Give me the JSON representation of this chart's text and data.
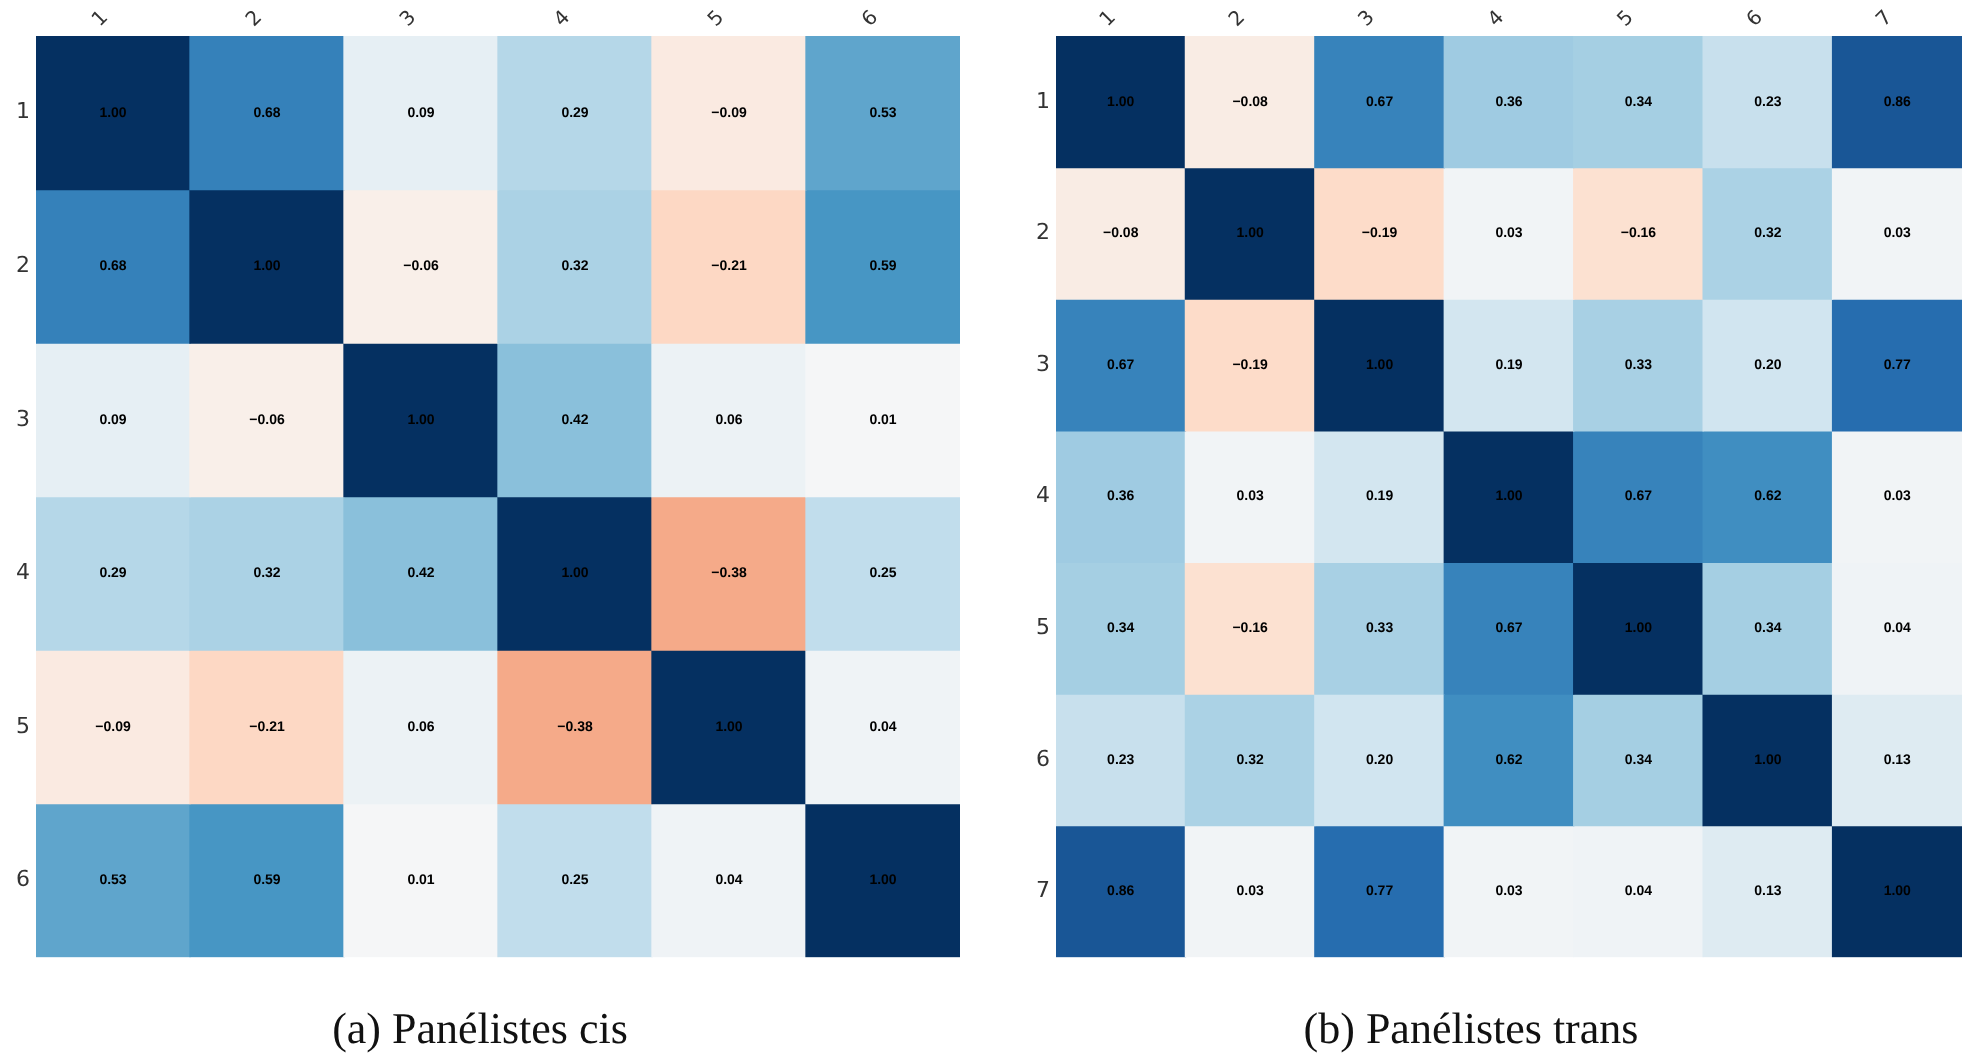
{
  "chart_data": [
    {
      "type": "heatmap",
      "title": "(a) Panélistes cis",
      "categories": [
        "1",
        "2",
        "3",
        "4",
        "5",
        "6"
      ],
      "y_categories": [
        "1",
        "2",
        "3",
        "4",
        "5",
        "6"
      ],
      "cells": [
        [
          1.0,
          0.68,
          0.09,
          0.29,
          -0.09,
          0.53
        ],
        [
          0.68,
          1.0,
          -0.06,
          0.32,
          -0.21,
          0.59
        ],
        [
          0.09,
          -0.06,
          1.0,
          0.42,
          0.06,
          0.01
        ],
        [
          0.29,
          0.32,
          0.42,
          1.0,
          -0.38,
          0.25
        ],
        [
          -0.09,
          -0.21,
          0.06,
          -0.38,
          1.0,
          0.04
        ],
        [
          0.53,
          0.59,
          0.01,
          0.25,
          0.04,
          1.0
        ]
      ],
      "cell_labels": [
        [
          "1.00",
          "0.68",
          "0.09",
          "0.29",
          "−0.09",
          "0.53"
        ],
        [
          "0.68",
          "1.00",
          "−0.06",
          "0.32",
          "−0.21",
          "0.59"
        ],
        [
          "0.09",
          "−0.06",
          "1.00",
          "0.42",
          "0.06",
          "0.01"
        ],
        [
          "0.29",
          "0.32",
          "0.42",
          "1.00",
          "−0.38",
          "0.25"
        ],
        [
          "−0.09",
          "−0.21",
          "0.06",
          "−0.38",
          "1.00",
          "0.04"
        ],
        [
          "0.53",
          "0.59",
          "0.01",
          "0.25",
          "0.04",
          "1.00"
        ]
      ]
    },
    {
      "type": "heatmap",
      "title": "(b) Panélistes trans",
      "categories": [
        "1",
        "2",
        "3",
        "4",
        "5",
        "6",
        "7"
      ],
      "y_categories": [
        "1",
        "2",
        "3",
        "4",
        "5",
        "6",
        "7"
      ],
      "cells": [
        [
          1.0,
          -0.08,
          0.67,
          0.36,
          0.34,
          0.23,
          0.86
        ],
        [
          -0.08,
          1.0,
          -0.19,
          0.03,
          -0.16,
          0.32,
          0.03
        ],
        [
          0.67,
          -0.19,
          1.0,
          0.19,
          0.33,
          0.2,
          0.77
        ],
        [
          0.36,
          0.03,
          0.19,
          1.0,
          0.67,
          0.62,
          0.03
        ],
        [
          0.34,
          -0.16,
          0.33,
          0.67,
          1.0,
          0.34,
          0.04
        ],
        [
          0.23,
          0.32,
          0.2,
          0.62,
          0.34,
          1.0,
          0.13
        ],
        [
          0.86,
          0.03,
          0.77,
          0.03,
          0.04,
          0.13,
          1.0
        ]
      ],
      "cell_labels": [
        [
          "1.00",
          "−0.08",
          "0.67",
          "0.36",
          "0.34",
          "0.23",
          "0.86"
        ],
        [
          "−0.08",
          "1.00",
          "−0.19",
          "0.03",
          "−0.16",
          "0.32",
          "0.03"
        ],
        [
          "0.67",
          "−0.19",
          "1.00",
          "0.19",
          "0.33",
          "0.20",
          "0.77"
        ],
        [
          "0.36",
          "0.03",
          "0.19",
          "1.00",
          "0.67",
          "0.62",
          "0.03"
        ],
        [
          "0.34",
          "−0.16",
          "0.33",
          "0.67",
          "1.00",
          "0.34",
          "0.04"
        ],
        [
          "0.23",
          "0.32",
          "0.20",
          "0.62",
          "0.34",
          "1.00",
          "0.13"
        ],
        [
          "0.86",
          "0.03",
          "0.77",
          "0.03",
          "0.04",
          "0.13",
          "1.00"
        ]
      ]
    }
  ]
}
